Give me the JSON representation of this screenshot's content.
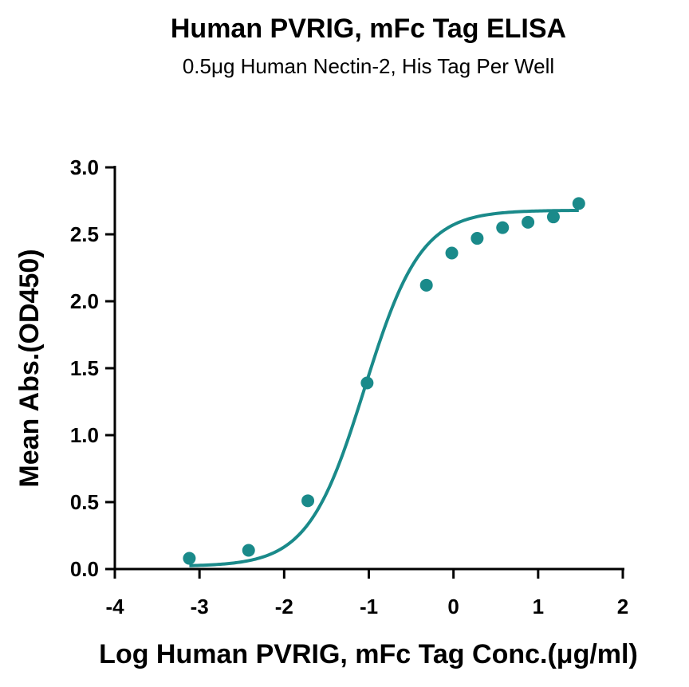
{
  "chart_data": {
    "type": "scatter",
    "title": "Human PVRIG, mFc Tag ELISA",
    "subtitle": "0.5μg Human Nectin-2, His Tag Per Well",
    "xlabel": "Log Human PVRIG, mFc Tag Conc.(μg/ml)",
    "ylabel": "Mean Abs.(OD450)",
    "xlim": [
      -4,
      2
    ],
    "ylim": [
      0,
      3
    ],
    "xticks": [
      "-4",
      "-3",
      "-2",
      "-1",
      "0",
      "1",
      "2"
    ],
    "yticks": [
      "0.0",
      "0.5",
      "1.0",
      "1.5",
      "2.0",
      "2.5",
      "3.0"
    ],
    "grid": false,
    "color": "#1a8a8a",
    "series": [
      {
        "x": [
          -3.12,
          -2.42,
          -1.72,
          -1.02,
          -0.32,
          -0.02,
          0.28,
          0.58,
          0.88,
          1.18,
          1.48
        ],
        "values": [
          0.08,
          0.14,
          0.51,
          1.39,
          2.12,
          2.36,
          2.47,
          2.55,
          2.59,
          2.63,
          2.73
        ],
        "fit": "4PL"
      }
    ]
  }
}
